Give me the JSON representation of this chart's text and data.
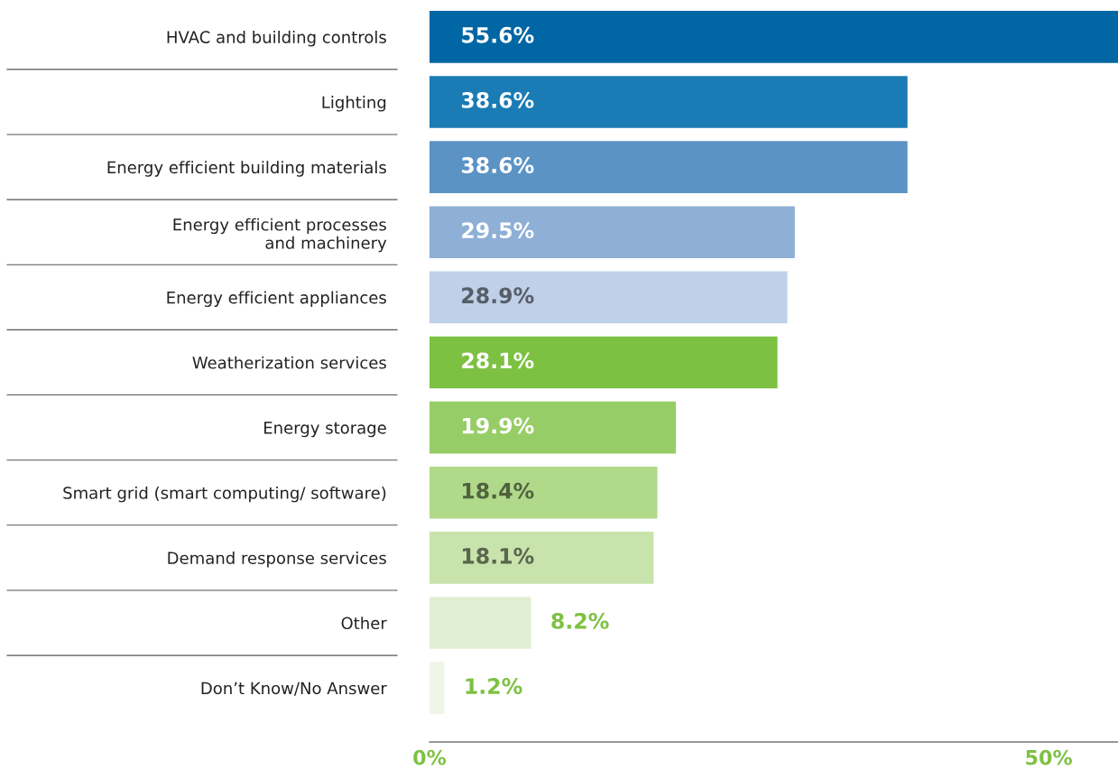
{
  "chart_data": {
    "type": "bar",
    "orientation": "horizontal",
    "categories": [
      "HVAC and building controls",
      "Lighting",
      "Energy efficient building materials",
      "Energy efficient processes\nand machinery",
      "Energy efficient appliances",
      "Weatherization services",
      "Energy storage",
      "Smart grid (smart computing/ software)",
      "Demand response services",
      "Other",
      "Don’t Know/No Answer"
    ],
    "values": [
      55.6,
      38.6,
      38.6,
      29.5,
      28.9,
      28.1,
      19.9,
      18.4,
      18.1,
      8.2,
      1.2
    ],
    "colors": [
      "#0066a4",
      "#1a7bb5",
      "#5b93c4",
      "#8eafd6",
      "#c0d0e8",
      "#7dc142",
      "#97cd66",
      "#b0d98a",
      "#c8e3ac",
      "#e0efd2",
      "#eff6e8"
    ],
    "value_labels": [
      "55.6%",
      "38.6%",
      "38.6%",
      "29.5%",
      "28.9%",
      "28.1%",
      "19.9%",
      "18.4%",
      "18.1%",
      "8.2%",
      "1.2%"
    ],
    "xlim": [
      0,
      55.6
    ],
    "xticks": [
      {
        "value": 0,
        "label": "0%"
      },
      {
        "value": 50,
        "label": "50%"
      }
    ],
    "grid": false,
    "legend": false
  }
}
